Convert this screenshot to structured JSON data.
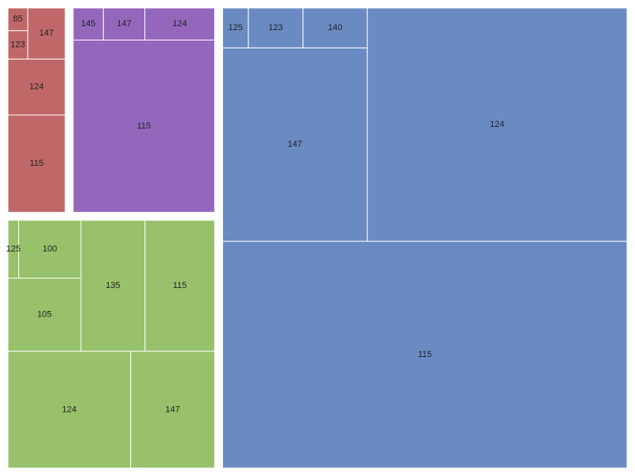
{
  "chart_data": {
    "type": "treemap",
    "groups": [
      {
        "color": "#6a8bc2",
        "categories": [
          "115",
          "124",
          "147",
          "140",
          "123",
          "125"
        ],
        "values": [
          1430,
          945,
          436,
          40,
          34,
          16
        ]
      },
      {
        "color": "#97c16b",
        "categories": [
          "124",
          "147",
          "115",
          "135",
          "105",
          "100",
          "125"
        ],
        "values": [
          231,
          158,
          147,
          135,
          86,
          58,
          10
        ]
      },
      {
        "color": "#9467bd",
        "categories": [
          "115",
          "124",
          "147",
          "145"
        ],
        "values": [
          402,
          37,
          22,
          16
        ]
      },
      {
        "color": "#c06868",
        "categories": [
          "115",
          "124",
          "147",
          "123",
          "85"
        ],
        "values": [
          99,
          57,
          34,
          10,
          8
        ]
      }
    ]
  }
}
